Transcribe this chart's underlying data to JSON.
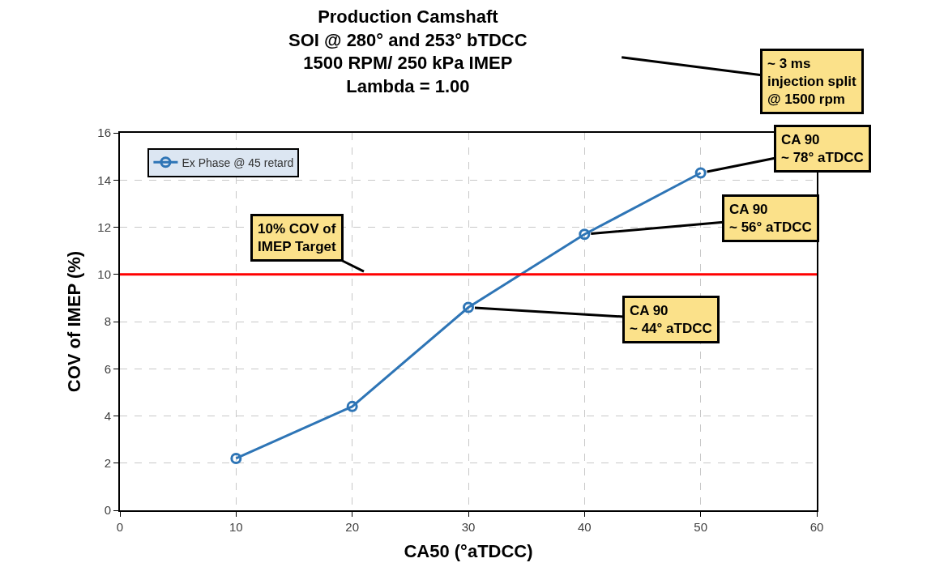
{
  "chart_data": {
    "type": "line",
    "title": "Production Camshaft\nSOI @ 280° and 253° bTDCC\n1500 RPM/ 250 kPa IMEP\nLambda = 1.00",
    "xlabel": "CA50 (°aTDCC)",
    "ylabel": "COV of IMEP (%)",
    "x": [
      10,
      20,
      30,
      40,
      50
    ],
    "series": [
      {
        "name": "Ex Phase @ 45 retard",
        "color": "#2e75b6",
        "values": [
          2.2,
          4.4,
          8.6,
          11.7,
          14.3
        ]
      }
    ],
    "xlim": [
      0,
      60
    ],
    "xticks": [
      0,
      10,
      20,
      30,
      40,
      50,
      60
    ],
    "ylim": [
      0,
      16
    ],
    "yticks": [
      0,
      2,
      4,
      6,
      8,
      10,
      12,
      14,
      16
    ],
    "grid": true,
    "legend": "top left",
    "marker": "circle",
    "line_style": "solid",
    "ref_lines": [
      {
        "axis": "y",
        "value": 10,
        "color": "#ff0000"
      }
    ],
    "annotations": [
      "~ 3 ms\ninjection split\n@ 1500 rpm",
      {
        "text": "10% COV of\nIMEP Target",
        "x": 21.5,
        "y": 10
      },
      {
        "text": "CA 90\n~ 44° aTDCC",
        "x": 30,
        "y": 8.6
      },
      {
        "text": "CA 90\n~ 56° aTDCC",
        "x": 40,
        "y": 11.7
      },
      {
        "text": "CA 90\n~ 78° aTDCC",
        "x": 50,
        "y": 14.3
      }
    ]
  }
}
